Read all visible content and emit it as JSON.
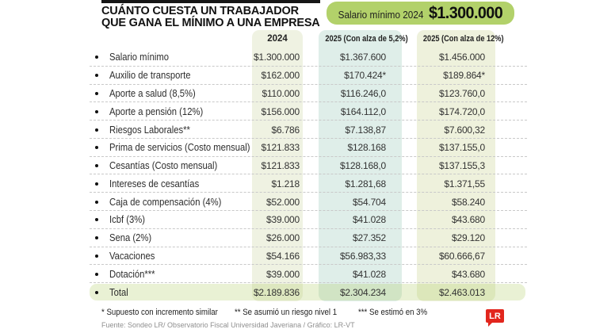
{
  "header": {
    "title_line1": "CUÁNTO CUESTA UN TRABAJADOR",
    "title_line2": "QUE GANA EL MÍNIMO A UNA EMPRESA"
  },
  "badge": {
    "label": "Salario mínimo 2024",
    "value": "$1.300.000",
    "bg_color": "#b2d16a"
  },
  "table": {
    "columns": [
      {
        "label": "2024",
        "bg_color": "#eff2e2"
      },
      {
        "label": "2025 (Con alza de 5,2%)",
        "bg_color": "#dfeee9"
      },
      {
        "label": "2025 (Con alza de 12%)",
        "bg_color": "#eef1dc"
      }
    ],
    "rows": [
      {
        "label": "Salario mínimo",
        "values": [
          "$1.300.000",
          "$1.367.600",
          "$1.456.000"
        ]
      },
      {
        "label": "Auxilio de transporte",
        "values": [
          "$162.000",
          "$170.424*",
          "$189.864*"
        ]
      },
      {
        "label": "Aporte a salud (8,5%)",
        "values": [
          "$110.000",
          "$116.246,0",
          "$123.760,0"
        ]
      },
      {
        "label": "Aporte a pensión (12%)",
        "values": [
          "$156.000",
          "$164.112,0",
          "$174.720,0"
        ]
      },
      {
        "label": "Riesgos Laborales**",
        "values": [
          "$6.786",
          "$7.138,87",
          "$7.600,32"
        ]
      },
      {
        "label": "Prima de servicios (Costo mensual)",
        "values": [
          "$121.833",
          "$128.168",
          "$137.155,0"
        ]
      },
      {
        "label": "Cesantías (Costo mensual)",
        "values": [
          "$121.833",
          "$128.168,0",
          "$137.155,3"
        ]
      },
      {
        "label": "Intereses de cesantías",
        "values": [
          "$1.218",
          "$1.281,68",
          "$1.371,55"
        ]
      },
      {
        "label": "Caja de compensación (4%)",
        "values": [
          "$52.000",
          "$54.704",
          "$58.240"
        ]
      },
      {
        "label": "Icbf (3%)",
        "values": [
          "$39.000",
          "$41.028",
          "$43.680"
        ]
      },
      {
        "label": "Sena (2%)",
        "values": [
          "$26.000",
          "$27.352",
          "$29.120"
        ]
      },
      {
        "label": "Vacaciones",
        "values": [
          "$54.166",
          "$56.983,33",
          "$60.666,67"
        ]
      },
      {
        "label": "Dotación***",
        "values": [
          "$39.000",
          "$41.028",
          "$43.680"
        ]
      },
      {
        "label": "Total",
        "values": [
          "$2.189.836",
          "$2.304.234",
          "$2.463.013"
        ],
        "is_total": true
      }
    ]
  },
  "footnotes": [
    "* Supuesto con incremento similar",
    "** Se asumió un riesgo nivel 1",
    "*** Se estimó en 3%"
  ],
  "source": "Fuente: Sondeo LR/ Observatorio Fiscal Universidad Javeriana / Gráfico: LR-VT",
  "logo_text": "LR",
  "chart_data": {
    "type": "table",
    "title": "Cuánto cuesta un trabajador que gana el mínimo a una empresa (Salario mínimo 2024: $1.300.000)",
    "categories": [
      "Salario mínimo",
      "Auxilio de transporte",
      "Aporte a salud (8,5%)",
      "Aporte a pensión (12%)",
      "Riesgos Laborales",
      "Prima de servicios (Costo mensual)",
      "Cesantías (Costo mensual)",
      "Intereses de cesantías",
      "Caja de compensación (4%)",
      "Icbf (3%)",
      "Sena (2%)",
      "Vacaciones",
      "Dotación",
      "Total"
    ],
    "series": [
      {
        "name": "2024",
        "values": [
          1300000,
          162000,
          110000,
          156000,
          6786,
          121833,
          121833,
          1218,
          52000,
          39000,
          26000,
          54166,
          39000,
          2189836
        ]
      },
      {
        "name": "2025 (Con alza de 5,2%)",
        "values": [
          1367600,
          170424,
          116246.0,
          164112.0,
          7138.87,
          128168,
          128168.0,
          1281.68,
          54704,
          41028,
          27352,
          56983.33,
          41028,
          2304234
        ]
      },
      {
        "name": "2025 (Con alza de 12%)",
        "values": [
          1456000,
          189864,
          123760.0,
          174720.0,
          7600.32,
          137155.0,
          137155.3,
          1371.55,
          58240,
          43680,
          29120,
          60666.67,
          43680,
          2463013
        ]
      }
    ]
  }
}
